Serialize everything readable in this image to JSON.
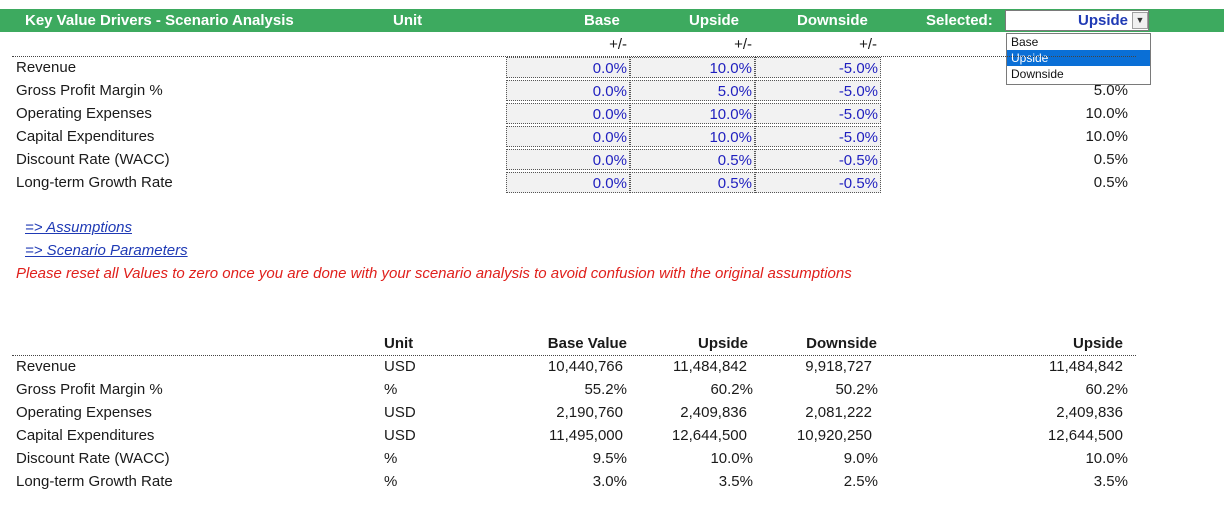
{
  "header": {
    "title": "Key Value Drivers - Scenario Analysis",
    "unit_label": "Unit",
    "base_label": "Base",
    "upside_label": "Upside",
    "downside_label": "Downside",
    "selected_label": "Selected:"
  },
  "dropdown": {
    "selected_value": "Upside",
    "options": [
      "Base",
      "Upside",
      "Downside"
    ]
  },
  "input_grid": {
    "plusminus": "+/-",
    "rows": [
      {
        "label": "Revenue",
        "base": "0.0%",
        "upside": "10.0%",
        "downside": "-5.0%",
        "selected": ""
      },
      {
        "label": "Gross Profit Margin %",
        "base": "0.0%",
        "upside": "5.0%",
        "downside": "-5.0%",
        "selected": "5.0%"
      },
      {
        "label": "Operating Expenses",
        "base": "0.0%",
        "upside": "10.0%",
        "downside": "-5.0%",
        "selected": "10.0%"
      },
      {
        "label": "Capital Expenditures",
        "base": "0.0%",
        "upside": "10.0%",
        "downside": "-5.0%",
        "selected": "10.0%"
      },
      {
        "label": "Discount Rate (WACC)",
        "base": "0.0%",
        "upside": "0.5%",
        "downside": "-0.5%",
        "selected": "0.5%"
      },
      {
        "label": "Long-term Growth Rate",
        "base": "0.0%",
        "upside": "0.5%",
        "downside": "-0.5%",
        "selected": "0.5%"
      }
    ]
  },
  "links": {
    "assumptions": "=> Assumptions",
    "scenario_parameters": "=> Scenario Parameters"
  },
  "warning": "Please reset all Values to zero once you are done with your scenario analysis to avoid confusion with the original assumptions",
  "results_table": {
    "headers": {
      "unit": "Unit",
      "base_value": "Base Value",
      "upside": "Upside",
      "downside": "Downside",
      "selected": "Upside"
    },
    "rows": [
      {
        "label": "Revenue",
        "unit": "USD",
        "base": "10,440,766",
        "upside": "11,484,842",
        "downside": "9,918,727",
        "selected": "11,484,842"
      },
      {
        "label": "Gross Profit Margin %",
        "unit": "%",
        "base": "55.2%",
        "upside": "60.2%",
        "downside": "50.2%",
        "selected": "60.2%"
      },
      {
        "label": "Operating Expenses",
        "unit": "USD",
        "base": "2,190,760",
        "upside": "2,409,836",
        "downside": "2,081,222",
        "selected": "2,409,836"
      },
      {
        "label": "Capital Expenditures",
        "unit": "USD",
        "base": "11,495,000",
        "upside": "12,644,500",
        "downside": "10,920,250",
        "selected": "12,644,500"
      },
      {
        "label": "Discount Rate (WACC)",
        "unit": "%",
        "base": "9.5%",
        "upside": "10.0%",
        "downside": "9.0%",
        "selected": "10.0%"
      },
      {
        "label": "Long-term Growth Rate",
        "unit": "%",
        "base": "3.0%",
        "upside": "3.5%",
        "downside": "2.5%",
        "selected": "3.5%"
      }
    ]
  }
}
